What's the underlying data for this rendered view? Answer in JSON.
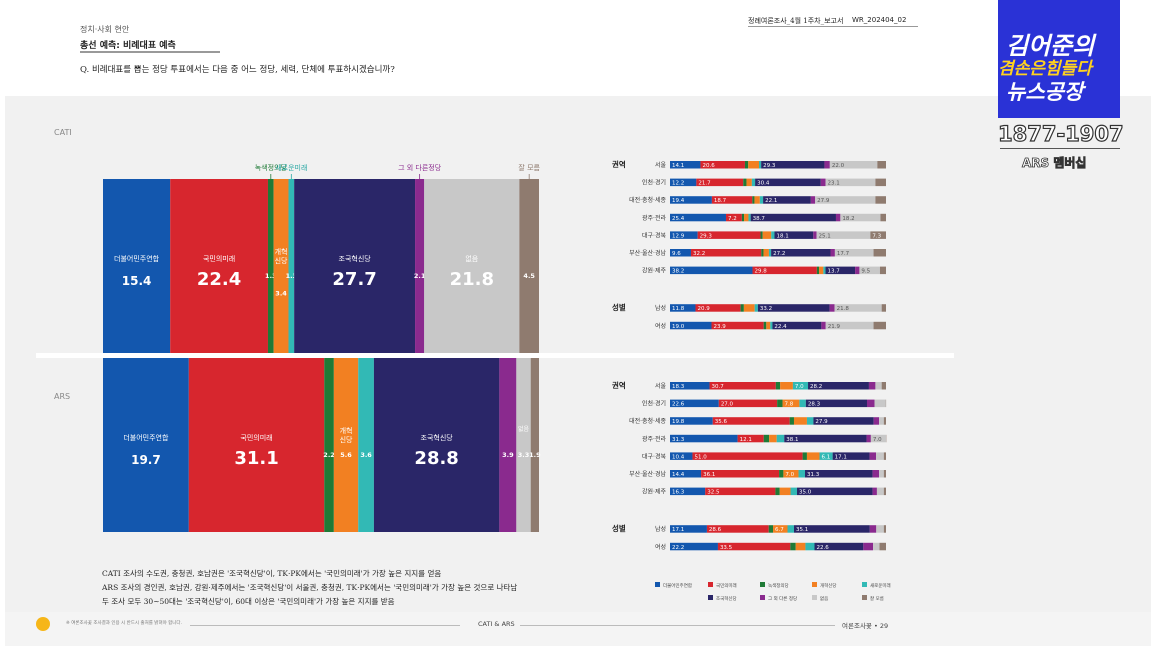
{
  "header": {
    "section": "정치·사회 현안",
    "subtitle": "총선 예측: 비례대표 예측",
    "question": "Q. 비례대표를 뽑는 정당 투표에서는 다음 중 어느 정당, 세력, 단체에 투표하시겠습니까?",
    "report": "정례여론조사_4월 1주차_보고서",
    "code": "WR_202404_02"
  },
  "logo": {
    "line1": "김어준의",
    "line2": "겸손은힘들다",
    "line3": "뉴스공장",
    "number": "1877-1907",
    "caption": "ARS 멤버십"
  },
  "colors": {
    "dem": "#1357ae",
    "ppp": "#d7262e",
    "green": "#1f7a36",
    "reform": "#f28022",
    "newfuture": "#32b9b5",
    "jokuk": "#2a2668",
    "other": "#8a2a8e",
    "none": "#c8c8c8",
    "dk": "#8f7b6f"
  },
  "legend": [
    {
      "key": "dem",
      "label": "더불어민주연합"
    },
    {
      "key": "ppp",
      "label": "국민의미래"
    },
    {
      "key": "green",
      "label": "녹색정의당"
    },
    {
      "key": "reform",
      "label": "개혁신당"
    },
    {
      "key": "newfuture",
      "label": "새로운미래"
    },
    {
      "key": "jokuk",
      "label": "조국혁신당"
    },
    {
      "key": "other",
      "label": "그 외 다른 정당"
    },
    {
      "key": "none",
      "label": "없음"
    },
    {
      "key": "dk",
      "label": "잘 모름"
    }
  ],
  "chart_data": [
    {
      "type": "bar",
      "title": "CATI",
      "orientation": "stacked-100",
      "categories": [
        "더불어민주연합",
        "국민의미래",
        "녹색정의당",
        "개혁신당",
        "새로운미래",
        "조국혁신당",
        "그 외 다른정당",
        "없음",
        "잘 모름"
      ],
      "series_keys": [
        "dem",
        "ppp",
        "green",
        "reform",
        "newfuture",
        "jokuk",
        "other",
        "none",
        "dk"
      ],
      "bar_labels": [
        "더불어민주연합",
        "국민의미래",
        "",
        "개혁\n신당",
        "",
        "조국혁신당",
        "",
        "없음",
        ""
      ],
      "top_labels": [
        "",
        "",
        "녹색정의당",
        "",
        "새로운미래",
        "",
        "그 외 다른정당",
        "",
        "잘 모름"
      ],
      "values": [
        15.4,
        22.4,
        1.3,
        3.4,
        1.3,
        27.7,
        2.1,
        21.8,
        4.5
      ]
    },
    {
      "type": "bar",
      "title": "ARS",
      "orientation": "stacked-100",
      "categories": [
        "더불어민주연합",
        "국민의미래",
        "녹색정의당",
        "개혁신당",
        "새로운미래",
        "조국혁신당",
        "그 외 다른정당",
        "없음",
        "잘 모름"
      ],
      "series_keys": [
        "dem",
        "ppp",
        "green",
        "reform",
        "newfuture",
        "jokuk",
        "other",
        "none",
        "dk"
      ],
      "bar_labels": [
        "더불어민주연합",
        "국민의미래",
        "",
        "개혁\n신당",
        "",
        "조국혁신당",
        "",
        "없음",
        ""
      ],
      "values": [
        19.7,
        31.1,
        2.2,
        5.6,
        3.6,
        28.8,
        3.9,
        3.3,
        1.9
      ]
    },
    {
      "type": "bar",
      "title": "CATI 권역·성별",
      "orientation": "horizontal-stacked",
      "series_keys": [
        "dem",
        "ppp",
        "green",
        "reform",
        "newfuture",
        "jokuk",
        "other",
        "none",
        "dk"
      ],
      "groups": [
        {
          "label": "권역",
          "rows": [
            {
              "label": "서울",
              "values": [
                14.1,
                20.6,
                1.5,
                5.0,
                1.0,
                29.3,
                2.5,
                22.0,
                4.0
              ]
            },
            {
              "label": "인천·경기",
              "values": [
                12.2,
                21.7,
                1.5,
                2.5,
                1.5,
                30.4,
                2.2,
                23.1,
                4.9
              ]
            },
            {
              "label": "대전·충청·세종",
              "values": [
                19.4,
                18.7,
                1.0,
                2.5,
                1.5,
                22.1,
                2.0,
                27.9,
                4.9
              ]
            },
            {
              "label": "광주·전라",
              "values": [
                25.4,
                7.2,
                1.0,
                2.0,
                1.0,
                38.7,
                2.0,
                18.2,
                2.5
              ]
            },
            {
              "label": "대구·경북",
              "values": [
                12.9,
                29.3,
                1.0,
                4.0,
                1.5,
                18.1,
                1.5,
                25.1,
                7.3
              ]
            },
            {
              "label": "부산·울산·경남",
              "values": [
                9.6,
                32.2,
                1.0,
                2.5,
                1.0,
                27.2,
                2.0,
                17.7,
                5.7
              ]
            },
            {
              "label": "강원·제주",
              "values": [
                38.2,
                29.8,
                1.0,
                2.0,
                1.0,
                13.7,
                2.0,
                9.5,
                2.8
              ]
            }
          ]
        },
        {
          "label": "성별",
          "rows": [
            {
              "label": "남성",
              "values": [
                11.8,
                20.9,
                1.5,
                5.0,
                1.5,
                33.2,
                2.3,
                21.8,
                2.0
              ]
            },
            {
              "label": "여성",
              "values": [
                19.0,
                23.9,
                1.2,
                1.8,
                1.0,
                22.4,
                2.0,
                21.9,
                5.7
              ]
            }
          ]
        }
      ]
    },
    {
      "type": "bar",
      "title": "ARS 권역·성별",
      "orientation": "horizontal-stacked",
      "series_keys": [
        "dem",
        "ppp",
        "green",
        "reform",
        "newfuture",
        "jokuk",
        "other",
        "none",
        "dk"
      ],
      "groups": [
        {
          "label": "권역",
          "rows": [
            {
              "label": "서울",
              "values": [
                18.3,
                30.7,
                2.0,
                5.9,
                7.0,
                28.2,
                3.0,
                2.9,
                2.0
              ]
            },
            {
              "label": "인천·경기",
              "values": [
                22.6,
                27.0,
                2.5,
                7.8,
                3.0,
                28.3,
                3.5,
                5.2,
                0.1
              ]
            },
            {
              "label": "대전·충청·세종",
              "values": [
                19.8,
                35.6,
                2.0,
                6.0,
                3.0,
                27.9,
                2.5,
                2.2,
                1.0
              ]
            },
            {
              "label": "광주·전라",
              "values": [
                31.3,
                12.1,
                2.5,
                3.5,
                3.5,
                38.1,
                2.0,
                7.0,
                0.0
              ]
            },
            {
              "label": "대구·경북",
              "values": [
                10.4,
                51.0,
                2.0,
                5.8,
                6.1,
                17.1,
                3.0,
                3.6,
                1.0
              ]
            },
            {
              "label": "부산·울산·경남",
              "values": [
                14.4,
                36.1,
                2.0,
                7.0,
                3.0,
                31.3,
                3.0,
                2.2,
                1.0
              ]
            },
            {
              "label": "강원·제주",
              "values": [
                16.3,
                32.5,
                2.0,
                5.0,
                3.0,
                35.0,
                2.0,
                3.2,
                1.0
              ]
            }
          ]
        },
        {
          "label": "성별",
          "rows": [
            {
              "label": "남성",
              "values": [
                17.1,
                28.6,
                2.0,
                6.7,
                3.0,
                35.1,
                3.0,
                3.5,
                1.0
              ]
            },
            {
              "label": "여성",
              "values": [
                22.2,
                33.5,
                2.5,
                4.5,
                4.2,
                22.6,
                4.5,
                3.0,
                3.0
              ]
            }
          ]
        }
      ]
    }
  ],
  "notes": [
    "CATI 조사의 수도권, 충청권, 호남권은 '조국혁신당'이, TK·PK에서는 '국민의미래'가 가장 높은 지지를 얻음",
    "ARS 조사의 경인권, 호남권, 강원·제주에서는 '조국혁신당'이 서울권, 충청권, TK·PK에서는 '국민의미래'가 가장 높은 것으로 나타남",
    "두 조사 모두 30~50대는 '조국혁신당'이, 60대 이상은 '국민의미래'가 가장 높은 지지를 받음"
  ],
  "footer": {
    "center": "CATI & ARS",
    "right": "여론조사꽃 • 29",
    "left": "※ 여론조사꽃 조사결과 인용 시 반드시 출처를 밝혀야 합니다."
  }
}
